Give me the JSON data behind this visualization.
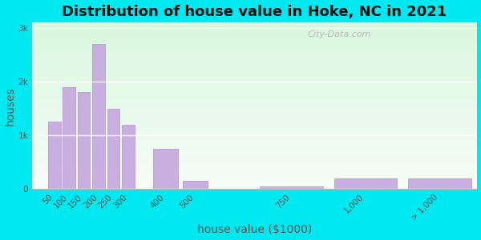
{
  "title": "Distribution of house value in Hoke, NC in 2021",
  "xlabel": "house value ($1000)",
  "ylabel": "houses",
  "bar_labels": [
    "50",
    "100",
    "150",
    "200",
    "250",
    "300",
    "400",
    "500",
    "750",
    "1,000",
    "> 1,000"
  ],
  "bar_x_positions": [
    50,
    100,
    150,
    200,
    250,
    300,
    400,
    500,
    750,
    1000,
    1250
  ],
  "bar_widths": [
    50,
    50,
    50,
    50,
    50,
    50,
    100,
    100,
    250,
    250,
    250
  ],
  "bar_values": [
    1250,
    1900,
    1800,
    2700,
    1500,
    1200,
    750,
    150,
    50,
    200,
    200
  ],
  "bar_color": "#c9aee0",
  "bar_edge_color": "#b090cc",
  "bg_outer": "#00e8f0",
  "bg_plot": "#edfaee",
  "ytick_labels": [
    "0",
    "1k",
    "2k",
    "3k"
  ],
  "ytick_values": [
    0,
    1000,
    2000,
    3000
  ],
  "ylim": [
    0,
    3100
  ],
  "xlim": [
    0,
    1500
  ],
  "watermark": "City-Data.com",
  "title_fontsize": 13,
  "axis_label_fontsize": 10,
  "tick_label_fontsize": 7.5,
  "grid_color": "#ffffff",
  "text_color": "#555555"
}
